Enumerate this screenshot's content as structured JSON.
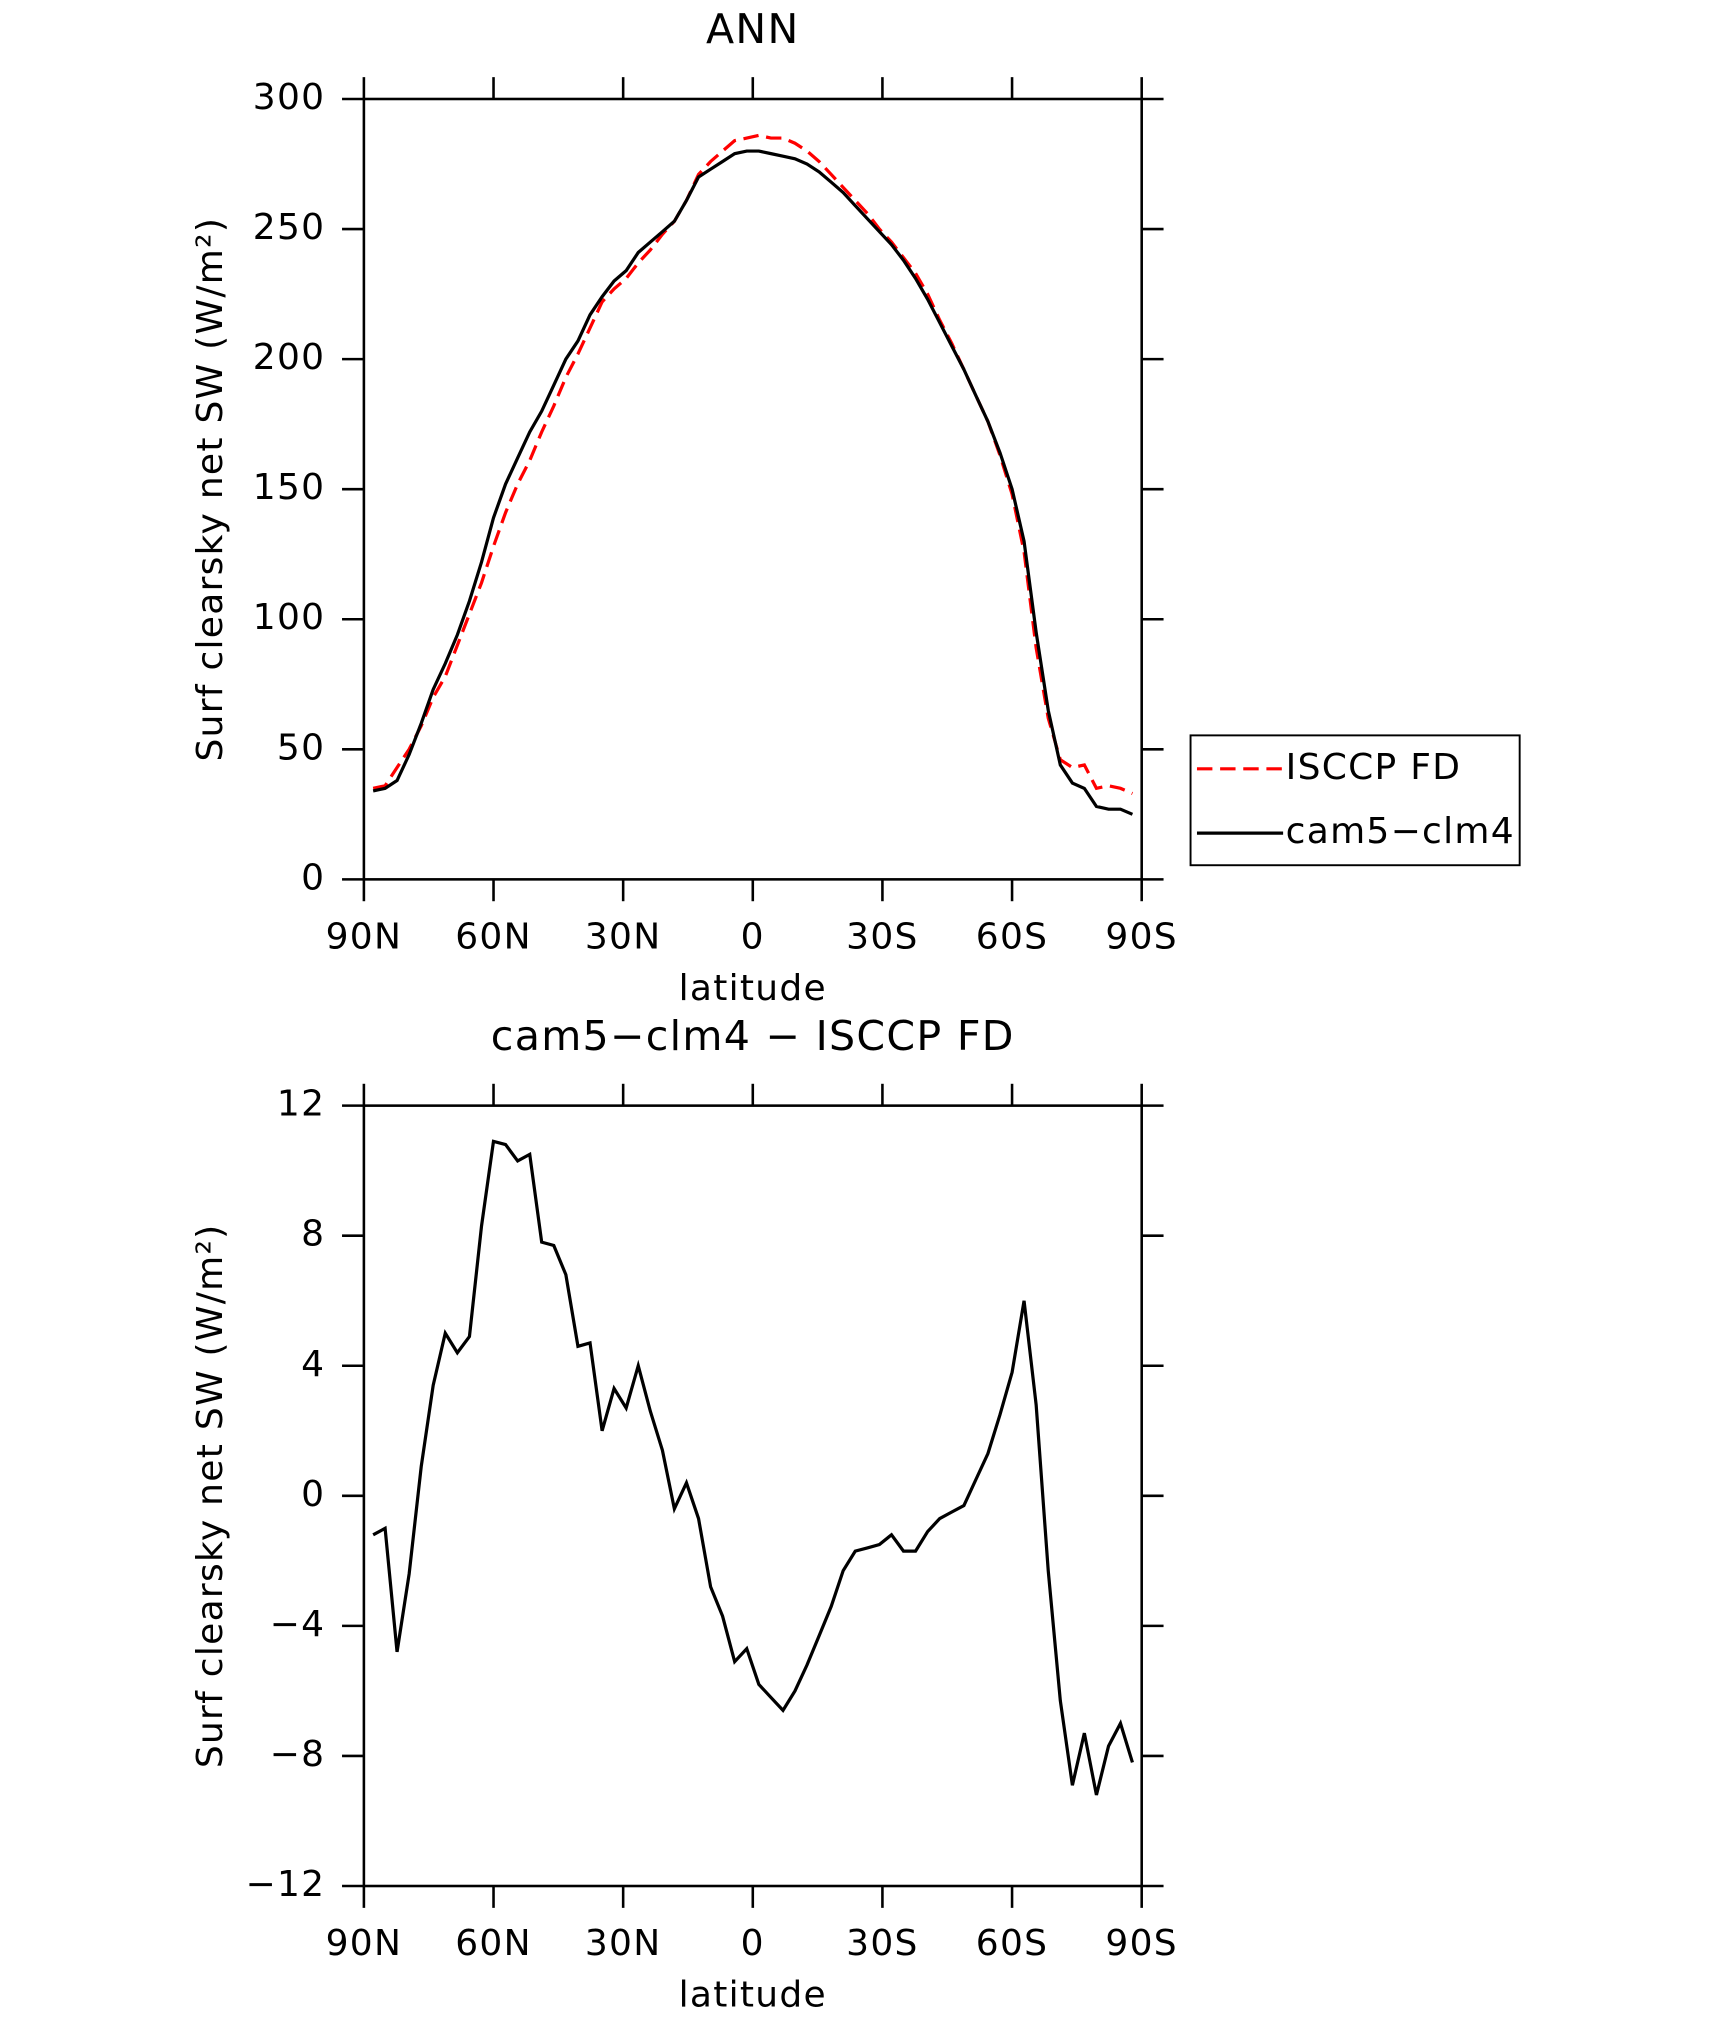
{
  "chart_data": [
    {
      "type": "line",
      "title": "ANN",
      "xlabel": "latitude",
      "ylabel": "Surf clearsky net SW (W/m²)",
      "x": [
        87.86,
        85.1,
        82.31,
        79.53,
        76.74,
        73.95,
        71.16,
        68.37,
        65.58,
        62.79,
        60.0,
        57.21,
        54.42,
        51.63,
        48.84,
        46.05,
        43.25,
        40.46,
        37.67,
        34.88,
        32.09,
        29.3,
        26.51,
        23.72,
        20.93,
        18.14,
        15.35,
        12.56,
        9.77,
        6.98,
        4.19,
        1.4,
        -1.4,
        -4.19,
        -6.98,
        -9.77,
        -12.56,
        -15.35,
        -18.14,
        -20.93,
        -23.72,
        -26.51,
        -29.3,
        -32.09,
        -34.88,
        -37.67,
        -40.46,
        -43.25,
        -46.05,
        -48.84,
        -51.63,
        -54.42,
        -57.21,
        -60.0,
        -62.79,
        -65.58,
        -68.37,
        -71.16,
        -73.95,
        -76.74,
        -79.53,
        -82.31,
        -85.1,
        -87.86
      ],
      "series": [
        {
          "name": "ISCCP FD",
          "color": "#ff0000",
          "dash": true,
          "values": [
            35,
            36,
            43,
            50,
            59,
            70,
            78,
            90,
            102,
            114,
            128,
            141,
            152,
            161,
            172,
            182,
            193,
            202,
            212,
            222,
            227,
            231,
            237,
            242,
            248,
            253,
            261,
            271,
            276,
            280,
            284,
            285,
            286,
            285,
            285,
            283,
            280,
            276,
            271,
            266,
            261,
            256,
            250,
            245,
            239,
            233,
            225,
            215,
            206,
            196,
            186,
            176,
            163,
            148,
            126,
            89,
            62,
            46,
            43,
            44,
            35,
            36,
            35,
            33
          ]
        },
        {
          "name": "cam5−clm4",
          "color": "#000000",
          "dash": false,
          "values": [
            34,
            35,
            38,
            48,
            60,
            73,
            83,
            94,
            107,
            122,
            139,
            152,
            162,
            172,
            180,
            190,
            200,
            207,
            217,
            224,
            230,
            234,
            241,
            245,
            249,
            253,
            261,
            270,
            273,
            276,
            279,
            280,
            280,
            279,
            278,
            277,
            275,
            272,
            268,
            264,
            259,
            254,
            249,
            244,
            238,
            231,
            223,
            214,
            205,
            196,
            186,
            176,
            164,
            150,
            130,
            95,
            65,
            44,
            37,
            35,
            28,
            27,
            27,
            25
          ]
        }
      ],
      "xlim": [
        90,
        -90
      ],
      "xticks": [
        {
          "value": 90,
          "label": "90N"
        },
        {
          "value": 60,
          "label": "60N"
        },
        {
          "value": 30,
          "label": "30N"
        },
        0,
        {
          "value": -30,
          "label": "30S"
        },
        {
          "value": -60,
          "label": "60S"
        },
        {
          "value": -90,
          "label": "90S"
        }
      ],
      "ylim": [
        0,
        300
      ],
      "yticks": [
        0,
        50,
        100,
        150,
        200,
        250,
        300
      ],
      "legend": "right"
    },
    {
      "type": "line",
      "title": "cam5−clm4 − ISCCP FD",
      "xlabel": "latitude",
      "ylabel": "Surf clearsky net SW (W/m²)",
      "x": [
        87.86,
        85.1,
        82.31,
        79.53,
        76.74,
        73.95,
        71.16,
        68.37,
        65.58,
        62.79,
        60.0,
        57.21,
        54.42,
        51.63,
        48.84,
        46.05,
        43.25,
        40.46,
        37.67,
        34.88,
        32.09,
        29.3,
        26.51,
        23.72,
        20.93,
        18.14,
        15.35,
        12.56,
        9.77,
        6.98,
        4.19,
        1.4,
        -1.4,
        -4.19,
        -6.98,
        -9.77,
        -12.56,
        -15.35,
        -18.14,
        -20.93,
        -23.72,
        -26.51,
        -29.3,
        -32.09,
        -34.88,
        -37.67,
        -40.46,
        -43.25,
        -46.05,
        -48.84,
        -51.63,
        -54.42,
        -57.21,
        -60.0,
        -62.79,
        -65.58,
        -68.37,
        -71.16,
        -73.95,
        -76.74,
        -79.53,
        -82.31,
        -85.1,
        -87.86
      ],
      "series": [
        {
          "color": "#000000",
          "dash": false,
          "values": [
            -1.2,
            -1.0,
            -4.8,
            -2.4,
            0.9,
            3.4,
            5.0,
            4.4,
            4.9,
            8.3,
            10.9,
            10.8,
            10.3,
            10.5,
            7.8,
            7.7,
            6.8,
            4.6,
            4.7,
            2.0,
            3.3,
            2.7,
            4.0,
            2.6,
            1.4,
            -0.4,
            0.4,
            -0.7,
            -2.8,
            -3.7,
            -5.1,
            -4.7,
            -5.8,
            -6.2,
            -6.6,
            -6.0,
            -5.2,
            -4.3,
            -3.4,
            -2.3,
            -1.7,
            -1.6,
            -1.5,
            -1.2,
            -1.7,
            -1.7,
            -1.1,
            -0.7,
            -0.5,
            -0.3,
            0.5,
            1.3,
            2.5,
            3.8,
            6.0,
            2.8,
            -2.3,
            -6.3,
            -8.9,
            -7.3,
            -9.2,
            -7.7,
            -7.0,
            -8.2
          ]
        }
      ],
      "xlim": [
        90,
        -90
      ],
      "xticks": [
        {
          "value": 90,
          "label": "90N"
        },
        {
          "value": 60,
          "label": "60N"
        },
        {
          "value": 30,
          "label": "30N"
        },
        0,
        {
          "value": -30,
          "label": "30S"
        },
        {
          "value": -60,
          "label": "60S"
        },
        {
          "value": -90,
          "label": "90S"
        }
      ],
      "ylim": [
        -12,
        12
      ],
      "yticks": [
        {
          "value": -12,
          "label": "−12"
        },
        {
          "value": -8,
          "label": "−8"
        },
        {
          "value": -4,
          "label": "−4"
        },
        0,
        4,
        8,
        12
      ]
    }
  ]
}
